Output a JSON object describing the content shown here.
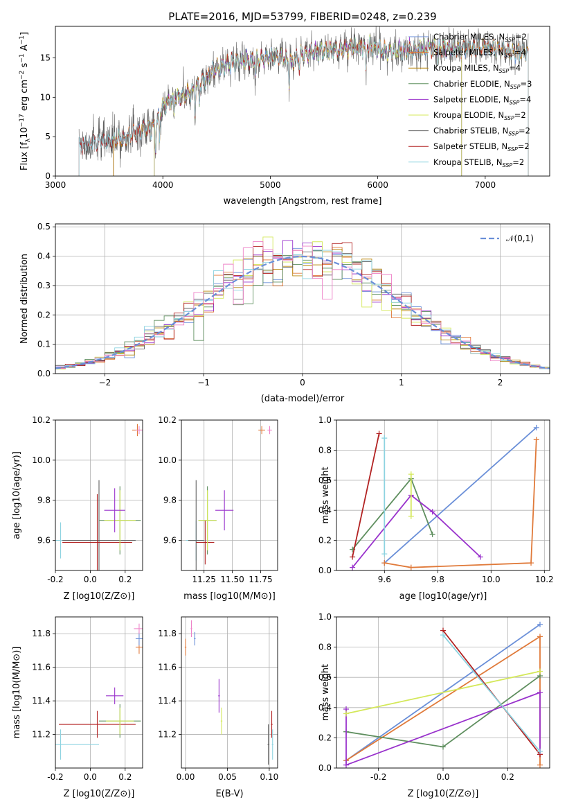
{
  "title": "PLATE=2016, MJD=53799, FIBERID=0248, z=0.239",
  "colors": {
    "chabrier_miles": "#6a8fd8",
    "salpeter_miles": "#e07a3a",
    "kroupa_miles": "#b8860b",
    "chabrier_elodie": "#5f8f5f",
    "salpeter_elodie": "#9932cc",
    "kroupa_elodie": "#d4e85a",
    "chabrier_stelib": "#606060",
    "salpeter_stelib": "#b22222",
    "kroupa_stelib": "#8dd3e0",
    "pink": "#ee82c8",
    "gaussian": "#6a8fd8"
  },
  "chart_data": [
    {
      "type": "line",
      "id": "spectrum",
      "xlabel": "wavelength [Angstrom, rest frame]",
      "ylabel": "Flux [f_λ10^-17 erg cm^-2 s^-1 A^-1]",
      "xlim": [
        3000,
        7600
      ],
      "ylim": [
        0,
        19
      ],
      "xticks": [
        3000,
        4000,
        5000,
        6000,
        7000
      ],
      "yticks": [
        0,
        5,
        10,
        15
      ],
      "legend_position": "top-right",
      "series": [
        {
          "key": "chabrier_miles",
          "name": "Chabrier MILES, N",
          "sub": "SSP",
          "suffix": "=2",
          "xmin": 3540,
          "xmax": 7400
        },
        {
          "key": "salpeter_miles",
          "name": "Salpeter MILES, N",
          "sub": "SSP",
          "suffix": "=4",
          "xmin": 3540,
          "xmax": 7400
        },
        {
          "key": "kroupa_miles",
          "name": "Kroupa MILES, N",
          "sub": "SSP",
          "suffix": "=4",
          "xmin": 3540,
          "xmax": 7400
        },
        {
          "key": "chabrier_elodie",
          "name": "Chabrier ELODIE, N",
          "sub": "SSP",
          "suffix": "=3",
          "xmin": 3920,
          "xmax": 6780
        },
        {
          "key": "salpeter_elodie",
          "name": "Salpeter ELODIE, N",
          "sub": "SSP",
          "suffix": "=4",
          "xmin": 3920,
          "xmax": 6780
        },
        {
          "key": "kroupa_elodie",
          "name": "Kroupa ELODIE, N",
          "sub": "SSP",
          "suffix": "=2",
          "xmin": 3920,
          "xmax": 6780
        },
        {
          "key": "chabrier_stelib",
          "name": "Chabrier STELIB, N",
          "sub": "SSP",
          "suffix": "=2",
          "xmin": 3220,
          "xmax": 7400
        },
        {
          "key": "salpeter_stelib",
          "name": "Salpeter STELIB, N",
          "sub": "SSP",
          "suffix": "=2",
          "xmin": 3220,
          "xmax": 7400
        },
        {
          "key": "kroupa_stelib",
          "name": "Kroupa STELIB, N",
          "sub": "SSP",
          "suffix": "=2",
          "xmin": 3220,
          "xmax": 7400
        }
      ],
      "continuum": [
        [
          3220,
          4.0
        ],
        [
          3500,
          4.4
        ],
        [
          3600,
          4.6
        ],
        [
          3700,
          5.2
        ],
        [
          3800,
          5.8
        ],
        [
          3900,
          6.0
        ],
        [
          3950,
          7.0
        ],
        [
          4000,
          8.8
        ],
        [
          4100,
          9.8
        ],
        [
          4200,
          10.2
        ],
        [
          4300,
          11.0
        ],
        [
          4400,
          12.3
        ],
        [
          4500,
          13.8
        ],
        [
          4700,
          14.6
        ],
        [
          4900,
          14.8
        ],
        [
          5100,
          15.3
        ],
        [
          5200,
          14.4
        ],
        [
          5300,
          15.6
        ],
        [
          5600,
          16.0
        ],
        [
          5900,
          16.5
        ],
        [
          6100,
          15.8
        ],
        [
          6300,
          16.0
        ],
        [
          6500,
          16.3
        ],
        [
          6800,
          16.2
        ],
        [
          7000,
          16.4
        ],
        [
          7200,
          15.8
        ],
        [
          7400,
          15.5
        ]
      ]
    },
    {
      "type": "histogram",
      "id": "residuals",
      "xlabel": "(data-model)/error",
      "ylabel": "Normed distribution",
      "xlim": [
        -2.5,
        2.5
      ],
      "ylim": [
        0,
        0.51
      ],
      "xticks": [
        -2,
        -1,
        0,
        1,
        2
      ],
      "yticks": [
        0.0,
        0.1,
        0.2,
        0.3,
        0.4,
        0.5
      ],
      "bin_width": 0.1,
      "legend": "𝒩(0,1)",
      "legend_position": "top-right"
    },
    {
      "type": "scatter",
      "id": "age_vs_Z",
      "xlabel": "Z [log10(Z/Z⊙)]",
      "ylabel": "age  [log10(age/yr)]",
      "xlim": [
        -0.2,
        0.3
      ],
      "ylim": [
        9.45,
        10.2
      ],
      "xticks": [
        -0.2,
        0.0,
        0.2
      ],
      "yticks": [
        9.6,
        9.8,
        10.0,
        10.2
      ]
    },
    {
      "type": "scatter",
      "id": "age_vs_mass",
      "xlabel": "mass [log10(M/M⊙)]",
      "ylabel": "",
      "xlim": [
        11.05,
        11.9
      ],
      "ylim": [
        9.45,
        10.2
      ],
      "xticks": [
        11.25,
        11.5,
        11.75
      ],
      "yticks": [
        9.6,
        9.8,
        10.0,
        10.2
      ]
    },
    {
      "type": "line",
      "id": "weight_vs_age",
      "xlabel": "age  [log10(age/yr)]",
      "ylabel": "mass weight",
      "xlim": [
        9.42,
        10.22
      ],
      "ylim": [
        0,
        1.0
      ],
      "xticks": [
        9.6,
        9.8,
        10.0,
        10.2
      ],
      "yticks": [
        0.0,
        0.2,
        0.4,
        0.6,
        0.8,
        1.0
      ],
      "series": [
        {
          "key": "chabrier_miles",
          "points": [
            [
              9.6,
              0.05
            ],
            [
              10.17,
              0.95
            ]
          ]
        },
        {
          "key": "salpeter_miles",
          "points": [
            [
              9.6,
              0.05
            ],
            [
              9.7,
              0.02
            ],
            [
              10.15,
              0.05
            ],
            [
              10.17,
              0.87
            ]
          ]
        },
        {
          "key": "chabrier_elodie",
          "points": [
            [
              9.48,
              0.14
            ],
            [
              9.7,
              0.61
            ],
            [
              9.78,
              0.24
            ]
          ]
        },
        {
          "key": "salpeter_elodie",
          "points": [
            [
              9.48,
              0.02
            ],
            [
              9.7,
              0.5
            ],
            [
              9.78,
              0.39
            ],
            [
              9.96,
              0.09
            ]
          ]
        },
        {
          "key": "kroupa_elodie",
          "points": [
            [
              9.7,
              0.36
            ],
            [
              9.7,
              0.64
            ]
          ]
        },
        {
          "key": "salpeter_stelib",
          "points": [
            [
              9.48,
              0.09
            ],
            [
              9.58,
              0.91
            ]
          ]
        },
        {
          "key": "kroupa_stelib",
          "points": [
            [
              9.6,
              0.11
            ],
            [
              9.6,
              0.88
            ]
          ]
        }
      ]
    },
    {
      "type": "scatter",
      "id": "mass_vs_Z",
      "xlabel": "Z [log10(Z/Z⊙)]",
      "ylabel": "mass [log10(M/M⊙)]",
      "xlim": [
        -0.2,
        0.3
      ],
      "ylim": [
        11.0,
        11.9
      ],
      "xticks": [
        -0.2,
        0.0,
        0.2
      ],
      "yticks": [
        11.2,
        11.4,
        11.6,
        11.8
      ]
    },
    {
      "type": "scatter",
      "id": "mass_vs_ebv",
      "xlabel": "E(B-V)",
      "ylabel": "",
      "xlim": [
        -0.005,
        0.11
      ],
      "ylim": [
        11.0,
        11.9
      ],
      "xticks": [
        0.0,
        0.05,
        0.1
      ],
      "yticks": [
        11.2,
        11.4,
        11.6,
        11.8
      ]
    },
    {
      "type": "line",
      "id": "weight_vs_Z",
      "xlabel": "Z [log10(Z/Z⊙)]",
      "ylabel": "mass weight",
      "xlim": [
        -0.33,
        0.33
      ],
      "ylim": [
        0,
        1.0
      ],
      "xticks": [
        -0.2,
        0.0,
        0.2
      ],
      "yticks": [
        0.0,
        0.2,
        0.4,
        0.6,
        0.8,
        1.0
      ],
      "series": [
        {
          "key": "chabrier_miles",
          "points": [
            [
              -0.3,
              0.05
            ],
            [
              0.3,
              0.95
            ]
          ]
        },
        {
          "key": "salpeter_miles",
          "points": [
            [
              -0.3,
              0.05
            ],
            [
              0.3,
              0.87
            ],
            [
              0.3,
              0.02
            ]
          ]
        },
        {
          "key": "chabrier_elodie",
          "points": [
            [
              -0.3,
              0.24
            ],
            [
              0.0,
              0.14
            ],
            [
              0.3,
              0.61
            ]
          ]
        },
        {
          "key": "salpeter_elodie",
          "points": [
            [
              -0.3,
              0.39
            ],
            [
              -0.3,
              0.02
            ],
            [
              0.3,
              0.5
            ],
            [
              0.3,
              0.09
            ]
          ]
        },
        {
          "key": "kroupa_elodie",
          "points": [
            [
              -0.3,
              0.36
            ],
            [
              0.3,
              0.64
            ]
          ]
        },
        {
          "key": "salpeter_stelib",
          "points": [
            [
              0.0,
              0.91
            ],
            [
              0.3,
              0.09
            ]
          ]
        },
        {
          "key": "kroupa_stelib",
          "points": [
            [
              0.0,
              0.88
            ],
            [
              0.3,
              0.11
            ]
          ]
        }
      ]
    }
  ],
  "crosses": {
    "age_vs_Z": [
      {
        "c": "kroupa_stelib",
        "x": -0.17,
        "y": 9.6,
        "xerr": 0.22,
        "yerr": 0.09
      },
      {
        "c": "chabrier_stelib",
        "x": 0.05,
        "y": 9.6,
        "xerr": 0.21,
        "yerr": 0.3
      },
      {
        "c": "salpeter_stelib",
        "x": 0.04,
        "y": 9.59,
        "xerr": 0.2,
        "yerr": 0.24
      },
      {
        "c": "chabrier_elodie",
        "x": 0.17,
        "y": 9.7,
        "xerr": 0.12,
        "yerr": 0.17
      },
      {
        "c": "kroupa_elodie",
        "x": 0.17,
        "y": 9.7,
        "xerr": 0.09,
        "yerr": 0.15
      },
      {
        "c": "salpeter_elodie",
        "x": 0.14,
        "y": 9.75,
        "xerr": 0.06,
        "yerr": 0.11
      },
      {
        "c": "salpeter_miles",
        "x": 0.27,
        "y": 10.15,
        "xerr": 0.03,
        "yerr": 0.03
      },
      {
        "c": "pink",
        "x": 0.28,
        "y": 10.15,
        "xerr": 0.02,
        "yerr": 0.02
      }
    ],
    "age_vs_mass": [
      {
        "c": "kroupa_stelib",
        "x": 11.18,
        "y": 9.6,
        "xerr": 0.09,
        "yerr": 0.1
      },
      {
        "c": "chabrier_stelib",
        "x": 11.18,
        "y": 9.6,
        "xerr": 0.07,
        "yerr": 0.3
      },
      {
        "c": "salpeter_stelib",
        "x": 11.26,
        "y": 9.59,
        "xerr": 0.08,
        "yerr": 0.11
      },
      {
        "c": "chabrier_elodie",
        "x": 11.28,
        "y": 9.7,
        "xerr": 0.08,
        "yerr": 0.17
      },
      {
        "c": "kroupa_elodie",
        "x": 11.28,
        "y": 9.7,
        "xerr": 0.08,
        "yerr": 0.15
      },
      {
        "c": "salpeter_elodie",
        "x": 11.43,
        "y": 9.75,
        "xerr": 0.08,
        "yerr": 0.1
      },
      {
        "c": "salpeter_miles",
        "x": 11.76,
        "y": 10.15,
        "xerr": 0.03,
        "yerr": 0.02
      },
      {
        "c": "pink",
        "x": 11.83,
        "y": 10.15,
        "xerr": 0.02,
        "yerr": 0.02
      }
    ],
    "mass_vs_Z": [
      {
        "c": "kroupa_stelib",
        "x": -0.17,
        "y": 11.14,
        "xerr": 0.22,
        "yerr": 0.09
      },
      {
        "c": "salpeter_stelib",
        "x": 0.04,
        "y": 11.26,
        "xerr": 0.22,
        "yerr": 0.08
      },
      {
        "c": "chabrier_elodie",
        "x": 0.17,
        "y": 11.28,
        "xerr": 0.12,
        "yerr": 0.1
      },
      {
        "c": "kroupa_elodie",
        "x": 0.17,
        "y": 11.28,
        "xerr": 0.08,
        "yerr": 0.08
      },
      {
        "c": "salpeter_elodie",
        "x": 0.14,
        "y": 11.43,
        "xerr": 0.05,
        "yerr": 0.05
      },
      {
        "c": "salpeter_miles",
        "x": 0.28,
        "y": 11.72,
        "xerr": 0.02,
        "yerr": 0.04
      },
      {
        "c": "chabrier_miles",
        "x": 0.28,
        "y": 11.77,
        "xerr": 0.02,
        "yerr": 0.04
      },
      {
        "c": "pink",
        "x": 0.28,
        "y": 11.83,
        "xerr": 0.03,
        "yerr": 0.03
      }
    ],
    "mass_vs_ebv": [
      {
        "c": "salpeter_miles",
        "x": 0.0,
        "y": 11.72,
        "xerr": 0.001,
        "yerr": 0.05
      },
      {
        "c": "pink",
        "x": 0.007,
        "y": 11.83,
        "xerr": 0.001,
        "yerr": 0.05
      },
      {
        "c": "chabrier_miles",
        "x": 0.011,
        "y": 11.77,
        "xerr": 0.001,
        "yerr": 0.04
      },
      {
        "c": "salpeter_elodie",
        "x": 0.04,
        "y": 11.43,
        "xerr": 0.001,
        "yerr": 0.1
      },
      {
        "c": "kroupa_elodie",
        "x": 0.043,
        "y": 11.28,
        "xerr": 0.001,
        "yerr": 0.08
      },
      {
        "c": "salpeter_stelib",
        "x": 0.103,
        "y": 11.26,
        "xerr": 0.001,
        "yerr": 0.08
      },
      {
        "c": "chabrier_stelib",
        "x": 0.099,
        "y": 11.14,
        "xerr": 0.001,
        "yerr": 0.12
      },
      {
        "c": "kroupa_stelib",
        "x": 0.104,
        "y": 11.14,
        "xerr": 0.001,
        "yerr": 0.09
      }
    ]
  }
}
